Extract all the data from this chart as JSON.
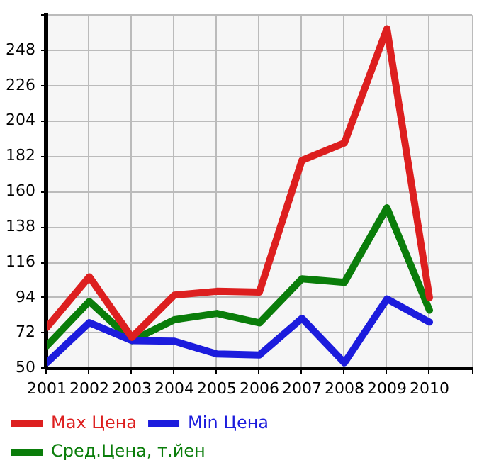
{
  "chart_data": {
    "type": "line",
    "x": [
      2001,
      2002,
      2003,
      2004,
      2005,
      2006,
      2007,
      2008,
      2009,
      2010
    ],
    "xlim": [
      2001,
      2011
    ],
    "xticks": [
      2001,
      2002,
      2003,
      2004,
      2005,
      2006,
      2007,
      2008,
      2009,
      2010,
      {
        "value": 2011,
        "label": null
      }
    ],
    "ylim": [
      50,
      270
    ],
    "yticks": [
      50,
      72,
      94,
      116,
      138,
      160,
      182,
      204,
      226,
      248,
      {
        "value": 270,
        "label": null
      }
    ],
    "grid": true,
    "legend": "bottom",
    "marker": "none",
    "line_style": "solid",
    "series": [
      {
        "name": "Max Цена",
        "color": "#dd1f1f",
        "values": [
          75.5,
          107,
          69.3,
          95.6,
          98,
          97.5,
          179.5,
          190.4,
          261.5,
          94
        ]
      },
      {
        "name": "Min Цена",
        "color": "#1c1cdd",
        "values": [
          53.5,
          78.5,
          67.3,
          66.9,
          59,
          58.3,
          81.2,
          53.5,
          93.2,
          78.8
        ]
      },
      {
        "name": "Сред.Цена, т.йен",
        "color": "#0a7d0a",
        "values": [
          64,
          91.7,
          67.3,
          80.3,
          84.2,
          78.3,
          105.8,
          103.6,
          150,
          86.2
        ]
      }
    ]
  }
}
